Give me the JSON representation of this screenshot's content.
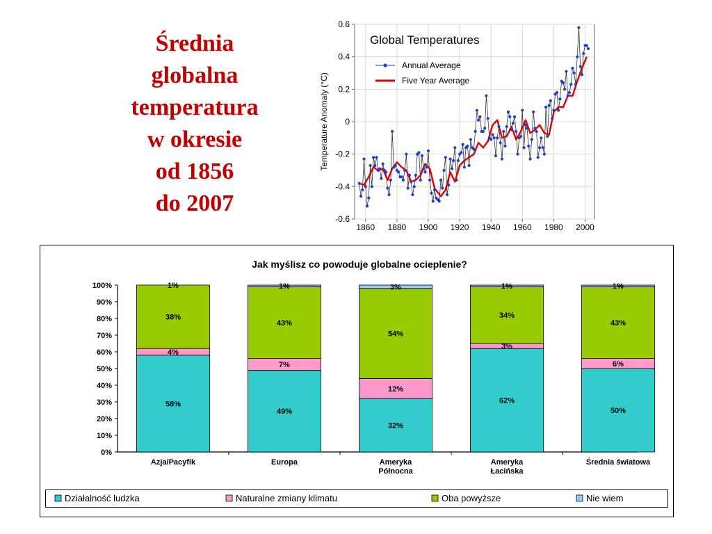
{
  "slide": {
    "title_lines": [
      "Średnia",
      "globalna",
      "temperatura",
      "w okresie",
      "od 1856",
      "do 2007"
    ]
  },
  "chart_data": [
    {
      "type": "line",
      "title": "Global Temperatures",
      "xlabel": "",
      "ylabel": "Temperature Anomaly (°C)",
      "xlim": [
        1853,
        2006
      ],
      "ylim": [
        -0.6,
        0.6
      ],
      "x_ticks": [
        1860,
        1880,
        1900,
        1920,
        1940,
        1960,
        1980,
        2000
      ],
      "y_ticks": [
        0.6,
        0.4,
        0.2,
        0,
        -0.2,
        -0.4,
        -0.6
      ],
      "legend_position": "top-left",
      "grid": true,
      "series": [
        {
          "name": "Annual Average",
          "color": "#1f3fd0",
          "x_start": 1856,
          "values": [
            -0.38,
            -0.46,
            -0.42,
            -0.23,
            -0.4,
            -0.52,
            -0.47,
            -0.27,
            -0.4,
            -0.22,
            -0.27,
            -0.22,
            -0.3,
            -0.29,
            -0.35,
            -0.26,
            -0.3,
            -0.31,
            -0.41,
            -0.45,
            -0.36,
            -0.06,
            -0.28,
            -0.27,
            -0.3,
            -0.31,
            -0.34,
            -0.34,
            -0.36,
            -0.3,
            -0.2,
            -0.41,
            -0.33,
            -0.37,
            -0.45,
            -0.4,
            -0.33,
            -0.2,
            -0.19,
            -0.36,
            -0.21,
            -0.29,
            -0.31,
            -0.28,
            -0.18,
            -0.36,
            -0.44,
            -0.49,
            -0.42,
            -0.47,
            -0.48,
            -0.49,
            -0.36,
            -0.41,
            -0.3,
            -0.22,
            -0.45,
            -0.39,
            -0.23,
            -0.29,
            -0.24,
            -0.16,
            -0.36,
            -0.24,
            -0.2,
            -0.19,
            -0.14,
            -0.28,
            -0.16,
            -0.15,
            -0.27,
            -0.11,
            -0.16,
            -0.17,
            -0.06,
            0.07,
            0.01,
            0.03,
            -0.06,
            -0.06,
            -0.04,
            0.16,
            0.02,
            -0.1,
            -0.11,
            -0.08,
            -0.1,
            -0.21,
            -0.1,
            -0.03,
            -0.13,
            -0.23,
            -0.06,
            -0.15,
            -0.03,
            0.06,
            0.03,
            -0.05,
            -0.01,
            0.03,
            -0.06,
            -0.2,
            -0.1,
            -0.09,
            0.07,
            -0.16,
            -0.02,
            -0.04,
            -0.15,
            -0.23,
            -0.11,
            0.06,
            -0.04,
            -0.06,
            -0.22,
            -0.16,
            -0.1,
            -0.16,
            -0.2,
            0.09,
            -0.09,
            0.1,
            0.13,
            0.02,
            0.07,
            0.17,
            0.18,
            0.07,
            0.14,
            0.25,
            0.24,
            0.2,
            0.31,
            0.16,
            0.18,
            0.23,
            0.33,
            0.3,
            0.23,
            0.4,
            0.58,
            0.34,
            0.29,
            0.42,
            0.47,
            0.47,
            0.45
          ]
        },
        {
          "name": "Five Year Average",
          "color": "#e00000",
          "x": [
            1856,
            1859,
            1862,
            1865,
            1868,
            1871,
            1874,
            1877,
            1880,
            1883,
            1886,
            1889,
            1892,
            1895,
            1898,
            1901,
            1904,
            1908,
            1911,
            1914,
            1917,
            1920,
            1923,
            1926,
            1929,
            1932,
            1935,
            1938,
            1941,
            1944,
            1947,
            1950,
            1953,
            1956,
            1959,
            1962,
            1965,
            1968,
            1971,
            1974,
            1977,
            1980,
            1983,
            1986,
            1989,
            1992,
            1995,
            1998,
            2001
          ],
          "values": [
            -0.38,
            -0.39,
            -0.34,
            -0.28,
            -0.3,
            -0.29,
            -0.36,
            -0.29,
            -0.25,
            -0.28,
            -0.3,
            -0.37,
            -0.36,
            -0.33,
            -0.26,
            -0.29,
            -0.41,
            -0.46,
            -0.42,
            -0.31,
            -0.37,
            -0.27,
            -0.24,
            -0.22,
            -0.2,
            -0.13,
            -0.16,
            -0.12,
            -0.02,
            0.01,
            -0.1,
            -0.09,
            -0.03,
            -0.11,
            -0.06,
            0.01,
            -0.07,
            -0.05,
            -0.02,
            -0.07,
            -0.08,
            0.06,
            0.09,
            0.09,
            0.16,
            0.16,
            0.25,
            0.33,
            0.4
          ]
        }
      ]
    },
    {
      "type": "bar",
      "stacked": true,
      "title": "Jak myślisz co powoduje globalne ocieplenie?",
      "xlabel": "",
      "ylabel": "",
      "ylim": [
        0,
        100
      ],
      "y_ticks": [
        "0%",
        "10%",
        "20%",
        "30%",
        "40%",
        "50%",
        "60%",
        "70%",
        "80%",
        "90%",
        "100%"
      ],
      "categories": [
        "Azja/Pacyfik",
        "Europa",
        "Ameryka Północna",
        "Ameryka Łacińska",
        "Średnia światowa"
      ],
      "category_lines": [
        [
          "Azja/Pacyfik"
        ],
        [
          "Europa"
        ],
        [
          "Ameryka",
          "Północna"
        ],
        [
          "Ameryka",
          "Łacińska"
        ],
        [
          "Średnia światowa"
        ]
      ],
      "legend_position": "bottom",
      "series": [
        {
          "name": "Działalność ludzka",
          "color": "#33cccc",
          "values": [
            58,
            49,
            32,
            62,
            50
          ]
        },
        {
          "name": "Naturalne zmiany klimatu",
          "color": "#ff99cc",
          "values": [
            4,
            7,
            12,
            3,
            6
          ]
        },
        {
          "name": "Oba powyższe",
          "color": "#99cc00",
          "values": [
            38,
            43,
            54,
            34,
            43
          ]
        },
        {
          "name": "Nie wiem",
          "color": "#99ccff",
          "values": [
            1,
            1,
            3,
            1,
            1
          ]
        }
      ]
    }
  ]
}
